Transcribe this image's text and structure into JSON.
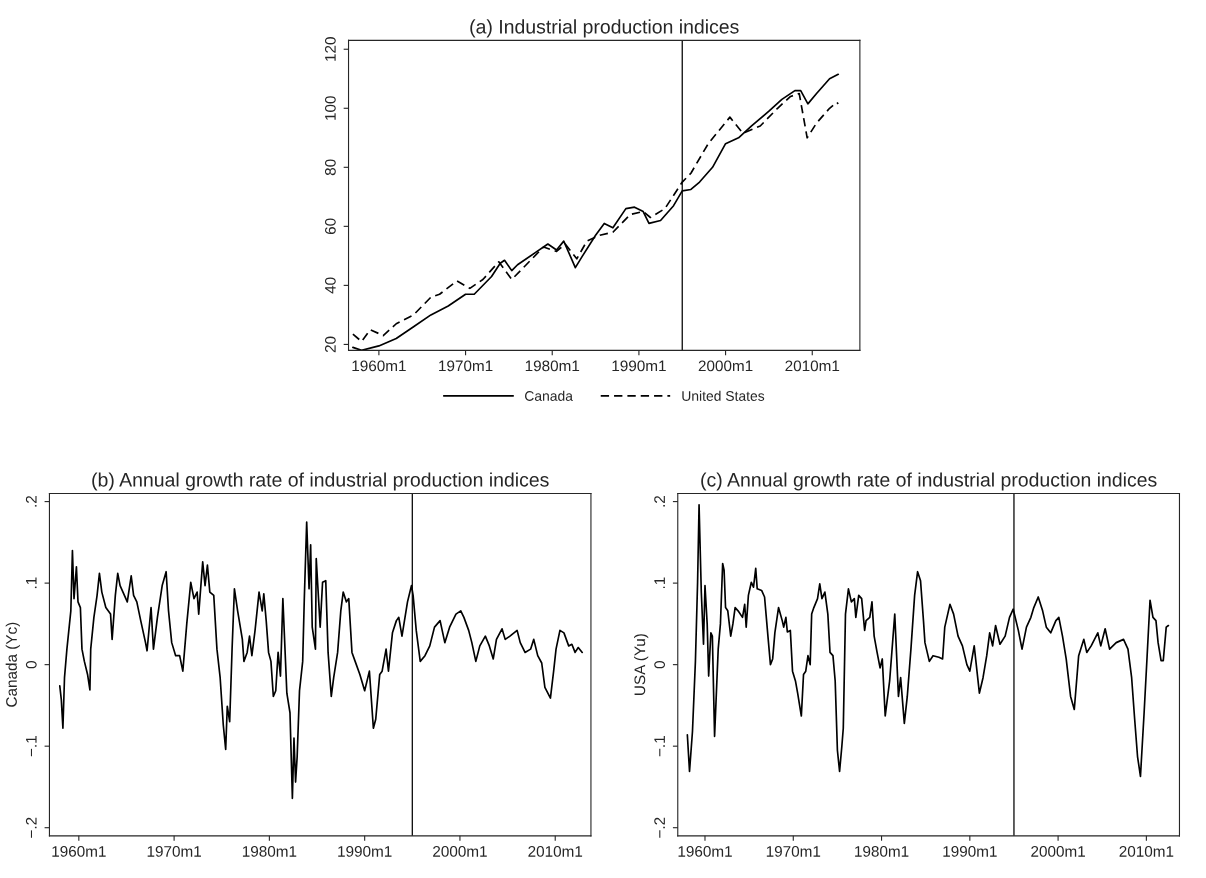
{
  "chart_data": [
    {
      "type": "line",
      "title": "(a) Industrial production indices",
      "xlim": [
        "1956-07",
        "2015-07"
      ],
      "ylim": [
        18,
        123
      ],
      "xticks": [
        {
          "value": "1960-01",
          "label": "1960m1"
        },
        {
          "value": "1970-01",
          "label": "1970m1"
        },
        {
          "value": "1980-01",
          "label": "1980m1"
        },
        {
          "value": "1990-01",
          "label": "1990m1"
        },
        {
          "value": "2000-01",
          "label": "2000m1"
        },
        {
          "value": "2010-01",
          "label": "2010m1"
        }
      ],
      "yticks": [
        20,
        40,
        60,
        80,
        100,
        120
      ],
      "legend": "bottom",
      "grid": false,
      "ref_lines": [
        {
          "axis": "x",
          "value": "1995-01",
          "color": "#000000"
        }
      ],
      "series": [
        {
          "name": "Canada",
          "color": "#000000",
          "line_style": "solid",
          "x": [
            "1957-01",
            "1958-01",
            "1960-01",
            "1962-01",
            "1964-01",
            "1966-01",
            "1968-01",
            "1970-01",
            "1971-01",
            "1973-01",
            "1974-01",
            "1974-07",
            "1975-05",
            "1976-01",
            "1978-01",
            "1979-07",
            "1980-07",
            "1981-05",
            "1982-09",
            "1983-07",
            "1985-01",
            "1986-01",
            "1987-01",
            "1988-07",
            "1989-07",
            "1990-07",
            "1991-03",
            "1992-07",
            "1994-01",
            "1995-01",
            "1996-01",
            "1997-01",
            "1998-07",
            "2000-01",
            "2001-07",
            "2003-01",
            "2005-01",
            "2006-07",
            "2008-01",
            "2008-09",
            "2009-07",
            "2010-07",
            "2012-01",
            "2013-01"
          ],
          "values": [
            19,
            18,
            19.5,
            22,
            26,
            30,
            33,
            37,
            37,
            43,
            47.5,
            48.5,
            45,
            47,
            51,
            54,
            52,
            55,
            46,
            50,
            57,
            61,
            59.5,
            66,
            66.5,
            65,
            61,
            62,
            67,
            72,
            72.5,
            75,
            80,
            88,
            90,
            94,
            99,
            103,
            106,
            106,
            101.5,
            105,
            110,
            111.5
          ]
        },
        {
          "name": "United States",
          "color": "#000000",
          "line_style": "dashed",
          "x": [
            "1957-01",
            "1958-01",
            "1959-01",
            "1960-07",
            "1962-01",
            "1964-01",
            "1966-01",
            "1967-01",
            "1969-01",
            "1970-07",
            "1972-01",
            "1973-11",
            "1975-05",
            "1977-01",
            "1979-01",
            "1980-07",
            "1981-07",
            "1982-11",
            "1984-01",
            "1985-07",
            "1987-01",
            "1989-01",
            "1990-07",
            "1991-05",
            "1993-01",
            "1995-01",
            "1996-01",
            "1998-01",
            "2000-07",
            "2002-01",
            "2004-01",
            "2006-01",
            "2007-07",
            "2008-07",
            "2009-06",
            "2010-07",
            "2012-01",
            "2012-11",
            "2013-01"
          ],
          "values": [
            23.5,
            21,
            25,
            23,
            27,
            30,
            36,
            37,
            41.5,
            39,
            42,
            48,
            42,
            47,
            53,
            51.5,
            54,
            49,
            55,
            57,
            58,
            64,
            65,
            63,
            66,
            75,
            78,
            88,
            97,
            91.5,
            94,
            100,
            104,
            105,
            90,
            95,
            100,
            102,
            101.5
          ]
        }
      ]
    },
    {
      "type": "line",
      "title": "(b) Annual growth rate of industrial production indices",
      "ylabel": "Canada (Yc)",
      "xlim": [
        "1956-12",
        "2013-10"
      ],
      "ylim": [
        -0.21,
        0.21
      ],
      "xticks": [
        {
          "value": "1960-01",
          "label": "1960m1"
        },
        {
          "value": "1970-01",
          "label": "1970m1"
        },
        {
          "value": "1980-01",
          "label": "1980m1"
        },
        {
          "value": "1990-01",
          "label": "1990m1"
        },
        {
          "value": "2000-01",
          "label": "2000m1"
        },
        {
          "value": "2010-01",
          "label": "2010m1"
        }
      ],
      "yticks": [
        {
          "value": -0.2,
          "label": "−.2"
        },
        {
          "value": -0.1,
          "label": "−.1"
        },
        {
          "value": 0,
          "label": "0"
        },
        {
          "value": 0.1,
          "label": ".1"
        },
        {
          "value": 0.2,
          "label": ".2"
        }
      ],
      "grid": false,
      "ref_lines": [
        {
          "axis": "x",
          "value": "1995-01",
          "color": "#000000"
        }
      ],
      "series": [
        {
          "color": "#000000",
          "line_style": "solid",
          "x": [
            "1958-01",
            "1958-03",
            "1958-05",
            "1958-07",
            "1958-10",
            "1959-03",
            "1959-05",
            "1959-07",
            "1959-10",
            "1959-12",
            "1960-03",
            "1960-05",
            "1960-08",
            "1960-12",
            "1961-03",
            "1961-04",
            "1961-08",
            "1961-12",
            "1962-03",
            "1962-06",
            "1962-11",
            "1963-05",
            "1963-07",
            "1963-11",
            "1964-02",
            "1964-05",
            "1965-02",
            "1965-07",
            "1965-10",
            "1966-02",
            "1966-07",
            "1967-01",
            "1967-03",
            "1967-08",
            "1967-11",
            "1968-04",
            "1968-10",
            "1969-03",
            "1969-06",
            "1969-10",
            "1970-03",
            "1970-08",
            "1970-12",
            "1971-05",
            "1971-10",
            "1972-02",
            "1972-06",
            "1972-08",
            "1973-01",
            "1973-04",
            "1973-07",
            "1973-10",
            "1974-03",
            "1974-07",
            "1974-11",
            "1975-03",
            "1975-06",
            "1975-08",
            "1975-11",
            "1976-02",
            "1976-05",
            "1976-09",
            "1977-03",
            "1977-05",
            "1977-09",
            "1977-12",
            "1978-03",
            "1978-07",
            "1978-12",
            "1979-04",
            "1979-06",
            "1979-09",
            "1979-12",
            "1980-03",
            "1980-06",
            "1980-09",
            "1980-12",
            "1981-03",
            "1981-06",
            "1981-11",
            "1982-03",
            "1982-06",
            "1982-08",
            "1982-10",
            "1982-12",
            "1983-03",
            "1983-07",
            "1983-09",
            "1983-12",
            "1984-03",
            "1984-05",
            "1984-07",
            "1984-11",
            "1984-12",
            "1985-05",
            "1985-08",
            "1985-12",
            "1986-03",
            "1986-07",
            "1986-10",
            "1987-03",
            "1987-07",
            "1987-10",
            "1988-02",
            "1988-05",
            "1988-09",
            "1989-01",
            "1989-07",
            "1990-01",
            "1990-07",
            "1990-12",
            "1991-03",
            "1991-08",
            "1991-11",
            "1992-04",
            "1992-07",
            "1992-12",
            "1993-05",
            "1993-08",
            "1993-12",
            "1994-07",
            "1994-12",
            "1995-02",
            "1995-06",
            "1995-11",
            "1996-05",
            "1996-11",
            "1997-05",
            "1997-12",
            "1998-06",
            "1998-12",
            "1999-08",
            "2000-02",
            "2000-06",
            "2000-12",
            "2001-04",
            "2001-09",
            "2002-02",
            "2002-09",
            "2003-02",
            "2003-07",
            "2003-11",
            "2004-06",
            "2004-10",
            "2005-04",
            "2006-01",
            "2006-05",
            "2006-11",
            "2007-06",
            "2007-10",
            "2008-03",
            "2008-08",
            "2008-12",
            "2009-07",
            "2009-11",
            "2010-02",
            "2010-07",
            "2010-12",
            "2011-06",
            "2011-10",
            "2012-02",
            "2012-06",
            "2012-11"
          ],
          "values": [
            -0.026,
            -0.043,
            -0.078,
            -0.016,
            0.019,
            0.066,
            0.14,
            0.081,
            0.12,
            0.077,
            0.07,
            0.019,
            0.004,
            -0.012,
            -0.031,
            0.019,
            0.058,
            0.085,
            0.112,
            0.089,
            0.07,
            0.062,
            0.031,
            0.085,
            0.112,
            0.097,
            0.077,
            0.109,
            0.085,
            0.077,
            0.054,
            0.027,
            0.017,
            0.07,
            0.019,
            0.058,
            0.097,
            0.114,
            0.066,
            0.027,
            0.011,
            0.011,
            -0.008,
            0.05,
            0.101,
            0.081,
            0.089,
            0.062,
            0.126,
            0.097,
            0.122,
            0.089,
            0.085,
            0.019,
            -0.016,
            -0.074,
            -0.104,
            -0.051,
            -0.07,
            0.019,
            0.093,
            0.066,
            0.031,
            0.004,
            0.015,
            0.035,
            0.011,
            0.042,
            0.089,
            0.066,
            0.087,
            0.054,
            0.015,
            0.004,
            -0.039,
            -0.032,
            0.015,
            -0.014,
            0.081,
            -0.035,
            -0.059,
            -0.164,
            -0.09,
            -0.144,
            -0.113,
            -0.032,
            0.004,
            0.081,
            0.175,
            0.093,
            0.147,
            0.046,
            0.019,
            0.13,
            0.046,
            0.101,
            0.103,
            0.015,
            -0.039,
            -0.016,
            0.015,
            0.066,
            0.089,
            0.077,
            0.081,
            0.015,
            0.004,
            -0.012,
            -0.032,
            -0.008,
            -0.078,
            -0.067,
            -0.012,
            -0.008,
            0.019,
            -0.008,
            0.039,
            0.054,
            0.058,
            0.035,
            0.077,
            0.097,
            0.085,
            0.042,
            0.004,
            0.011,
            0.023,
            0.046,
            0.054,
            0.027,
            0.046,
            0.062,
            0.066,
            0.058,
            0.042,
            0.027,
            0.004,
            0.023,
            0.035,
            0.023,
            0.007,
            0.031,
            0.044,
            0.031,
            0.035,
            0.042,
            0.027,
            0.015,
            0.019,
            0.031,
            0.011,
            0.002,
            -0.028,
            -0.041,
            -0.008,
            0.019,
            0.042,
            0.039,
            0.023,
            0.025,
            0.015,
            0.021,
            0.015
          ]
        }
      ]
    },
    {
      "type": "line",
      "title": "(c) Annual growth rate of industrial production indices",
      "ylabel": "USA (Yu)",
      "xlim": [
        "1956-12",
        "2013-10"
      ],
      "ylim": [
        -0.21,
        0.21
      ],
      "xticks": [
        {
          "value": "1960-01",
          "label": "1960m1"
        },
        {
          "value": "1970-01",
          "label": "1970m1"
        },
        {
          "value": "1980-01",
          "label": "1980m1"
        },
        {
          "value": "1990-01",
          "label": "1990m1"
        },
        {
          "value": "2000-01",
          "label": "2000m1"
        },
        {
          "value": "2010-01",
          "label": "2010m1"
        }
      ],
      "yticks": [
        {
          "value": -0.2,
          "label": "−.2"
        },
        {
          "value": -0.1,
          "label": "−.1"
        },
        {
          "value": 0,
          "label": "0"
        },
        {
          "value": 0.1,
          "label": ".1"
        },
        {
          "value": 0.2,
          "label": ".2"
        }
      ],
      "grid": false,
      "ref_lines": [
        {
          "axis": "x",
          "value": "1995-01",
          "color": "#000000"
        }
      ],
      "series": [
        {
          "color": "#000000",
          "line_style": "solid",
          "x": [
            "1958-01",
            "1958-04",
            "1958-08",
            "1958-12",
            "1959-03",
            "1959-05",
            "1959-08",
            "1959-11",
            "1960-01",
            "1960-04",
            "1960-06",
            "1960-09",
            "1960-11",
            "1961-02",
            "1961-07",
            "1961-10",
            "1962-01",
            "1962-03",
            "1962-05",
            "1962-08",
            "1962-12",
            "1963-03",
            "1963-06",
            "1963-10",
            "1964-04",
            "1964-07",
            "1964-09",
            "1964-12",
            "1965-04",
            "1965-07",
            "1965-10",
            "1965-12",
            "1966-06",
            "1966-10",
            "1966-12",
            "1967-03",
            "1967-06",
            "1967-09",
            "1967-12",
            "1968-05",
            "1968-10",
            "1968-12",
            "1969-03",
            "1969-05",
            "1969-09",
            "1969-12",
            "1970-04",
            "1970-07",
            "1970-12",
            "1971-03",
            "1971-06",
            "1971-09",
            "1971-12",
            "1972-02",
            "1972-05",
            "1972-10",
            "1973-01",
            "1973-04",
            "1973-08",
            "1973-12",
            "1974-03",
            "1974-07",
            "1974-10",
            "1975-01",
            "1975-04",
            "1975-07",
            "1975-09",
            "1975-12",
            "1976-04",
            "1976-08",
            "1976-12",
            "1977-02",
            "1977-06",
            "1977-10",
            "1978-02",
            "1978-04",
            "1978-09",
            "1978-12",
            "1979-03",
            "1979-07",
            "1979-11",
            "1980-02",
            "1980-06",
            "1980-12",
            "1981-07",
            "1981-12",
            "1982-03",
            "1982-08",
            "1982-12",
            "1983-05",
            "1983-10",
            "1984-02",
            "1984-06",
            "1984-10",
            "1984-12",
            "1985-06",
            "1985-11",
            "1986-07",
            "1986-12",
            "1987-03",
            "1987-10",
            "1988-03",
            "1988-09",
            "1989-03",
            "1989-09",
            "1990-01",
            "1990-07",
            "1991-02",
            "1991-07",
            "1991-12",
            "1992-04",
            "1992-08",
            "1992-12",
            "1993-06",
            "1994-01",
            "1994-07",
            "1994-12",
            "1995-07",
            "1995-12",
            "1996-06",
            "1996-12",
            "1997-04",
            "1997-10",
            "1998-04",
            "1998-09",
            "1999-03",
            "1999-10",
            "2000-02",
            "2000-07",
            "2000-12",
            "2001-06",
            "2001-11",
            "2002-05",
            "2002-12",
            "2003-04",
            "2003-10",
            "2004-07",
            "2004-11",
            "2005-05",
            "2005-11",
            "2006-08",
            "2007-06",
            "2007-12",
            "2008-05",
            "2008-09",
            "2009-01",
            "2009-05",
            "2009-10",
            "2010-02",
            "2010-06",
            "2010-10",
            "2011-02",
            "2011-05",
            "2011-09",
            "2011-12",
            "2012-04",
            "2012-07"
          ],
          "values": [
            -0.086,
            -0.131,
            -0.082,
            0.004,
            0.101,
            0.196,
            0.089,
            0.025,
            0.097,
            0.05,
            -0.014,
            0.039,
            0.035,
            -0.088,
            0.019,
            0.05,
            0.124,
            0.116,
            0.07,
            0.066,
            0.035,
            0.05,
            0.07,
            0.066,
            0.058,
            0.074,
            0.046,
            0.085,
            0.101,
            0.095,
            0.118,
            0.093,
            0.091,
            0.083,
            0.062,
            0.031,
            0.0,
            0.007,
            0.039,
            0.07,
            0.054,
            0.046,
            0.058,
            0.04,
            0.042,
            -0.008,
            -0.02,
            -0.035,
            -0.063,
            -0.012,
            -0.008,
            0.011,
            0.0,
            0.062,
            0.07,
            0.081,
            0.099,
            0.081,
            0.089,
            0.062,
            0.015,
            0.011,
            -0.02,
            -0.105,
            -0.131,
            -0.101,
            -0.078,
            0.062,
            0.093,
            0.077,
            0.081,
            0.058,
            0.085,
            0.081,
            0.042,
            0.054,
            0.058,
            0.077,
            0.035,
            0.015,
            -0.004,
            0.007,
            -0.063,
            -0.02,
            0.062,
            -0.039,
            -0.016,
            -0.072,
            -0.039,
            0.019,
            0.085,
            0.114,
            0.103,
            0.054,
            0.027,
            0.004,
            0.011,
            0.009,
            0.007,
            0.046,
            0.074,
            0.062,
            0.035,
            0.023,
            0.0,
            -0.008,
            0.023,
            -0.035,
            -0.016,
            0.011,
            0.039,
            0.023,
            0.048,
            0.025,
            0.035,
            0.058,
            0.068,
            0.042,
            0.019,
            0.046,
            0.058,
            0.07,
            0.083,
            0.066,
            0.046,
            0.039,
            0.054,
            0.058,
            0.035,
            0.007,
            -0.039,
            -0.055,
            0.011,
            0.031,
            0.015,
            0.023,
            0.039,
            0.023,
            0.044,
            0.019,
            0.027,
            0.031,
            0.019,
            -0.016,
            -0.066,
            -0.113,
            -0.137,
            -0.058,
            0.011,
            0.079,
            0.058,
            0.054,
            0.027,
            0.005,
            0.005,
            0.046,
            0.048
          ]
        }
      ]
    }
  ]
}
